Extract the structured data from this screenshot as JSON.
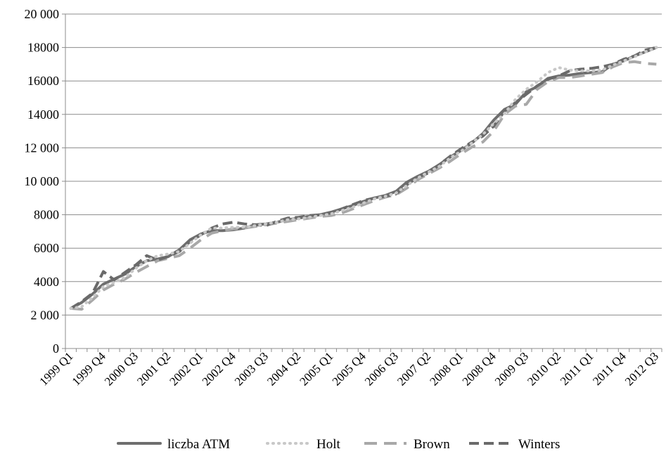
{
  "chart_data": {
    "type": "line",
    "title": "",
    "xlabel": "",
    "ylabel": "",
    "ylim": [
      0,
      20000
    ],
    "y_ticks": [
      0,
      2000,
      4000,
      6000,
      8000,
      10000,
      12000,
      14000,
      16000,
      18000,
      20000
    ],
    "y_tick_labels": [
      "0",
      "2 000",
      "4000",
      "6000",
      "8000",
      "10 000",
      "12 000",
      "14000",
      "16000",
      "18000",
      "20 000"
    ],
    "grid": "horizontal",
    "legend_position": "bottom",
    "categories": [
      "1999 Q1",
      "1999 Q2",
      "1999 Q3",
      "1999 Q4",
      "2000 Q1",
      "2000 Q2",
      "2000 Q3",
      "2000 Q4",
      "2001 Q1",
      "2001 Q2",
      "2001 Q3",
      "2001 Q4",
      "2002 Q1",
      "2002 Q2",
      "2002 Q3",
      "2002 Q4",
      "2003 Q1",
      "2003 Q2",
      "2003 Q3",
      "2003 Q4",
      "2004 Q1",
      "2004 Q2",
      "2004 Q3",
      "2004 Q4",
      "2005 Q1",
      "2005 Q2",
      "2005 Q3",
      "2005 Q4",
      "2006 Q1",
      "2006 Q2",
      "2006 Q3",
      "2006 Q4",
      "2007 Q1",
      "2007 Q2",
      "2007 Q3",
      "2007 Q4",
      "2008 Q1",
      "2008 Q2",
      "2008 Q3",
      "2008 Q4",
      "2009 Q1",
      "2009 Q2",
      "2009 Q3",
      "2009 Q4",
      "2010 Q1",
      "2010 Q2",
      "2010 Q3",
      "2010 Q4",
      "2011 Q1",
      "2011 Q2",
      "2011 Q3",
      "2011 Q4",
      "2012 Q1",
      "2012 Q2",
      "2012 Q3"
    ],
    "labeled_categories": [
      "1999 Q1",
      "1999 Q4",
      "2000 Q3",
      "2001 Q2",
      "2002 Q1",
      "2002 Q4",
      "2003 Q3",
      "2004 Q2",
      "2005 Q1",
      "2005 Q4",
      "2006 Q3",
      "2007 Q2",
      "2008 Q1",
      "2008 Q4",
      "2009 Q3",
      "2010 Q2",
      "2011 Q1",
      "2011 Q4",
      "2012 Q3"
    ],
    "series": [
      {
        "name": "liczba ATM",
        "style": "solid",
        "color": "#6e6e6e",
        "values": [
          2400,
          2750,
          3250,
          3850,
          4150,
          4450,
          4900,
          5250,
          5350,
          5500,
          5900,
          6500,
          6850,
          7050,
          7050,
          7100,
          7200,
          7400,
          7450,
          7550,
          7700,
          7800,
          7900,
          8000,
          8150,
          8350,
          8550,
          8800,
          9000,
          9150,
          9400,
          9950,
          10300,
          10600,
          11000,
          11450,
          11850,
          12300,
          12850,
          13650,
          14300,
          14600,
          15350,
          15650,
          16150,
          16300,
          16350,
          16450,
          16500,
          16550,
          17000,
          17200,
          17500,
          17750,
          18000
        ]
      },
      {
        "name": "Holt",
        "style": "dotted",
        "color": "#c8c8c8",
        "values": [
          2400,
          2500,
          3050,
          3700,
          3950,
          4250,
          4800,
          5250,
          5550,
          5650,
          5800,
          6300,
          6800,
          7200,
          7200,
          7250,
          7250,
          7350,
          7450,
          7550,
          7700,
          7750,
          7850,
          7950,
          8050,
          8250,
          8450,
          8700,
          8950,
          9100,
          9300,
          9750,
          10200,
          10550,
          10900,
          11400,
          11800,
          12300,
          12800,
          13450,
          14050,
          14900,
          15500,
          15950,
          16500,
          16800,
          16650,
          16600,
          16600,
          16650,
          16950,
          17200,
          17450,
          17750,
          18000
        ]
      },
      {
        "name": "Brown",
        "style": "dashed",
        "color": "#a8a8a8",
        "values": [
          2400,
          2350,
          2900,
          3500,
          3850,
          4150,
          4550,
          4900,
          5250,
          5400,
          5550,
          6000,
          6500,
          6900,
          7050,
          7150,
          7200,
          7300,
          7400,
          7500,
          7600,
          7700,
          7800,
          7900,
          7950,
          8100,
          8350,
          8600,
          8850,
          9050,
          9200,
          9600,
          10100,
          10450,
          10800,
          11200,
          11650,
          12050,
          12350,
          13000,
          14000,
          14500,
          14600,
          15500,
          15950,
          16200,
          16200,
          16300,
          16400,
          16500,
          16850,
          17100,
          17150,
          17050,
          17000
        ]
      },
      {
        "name": "Winters",
        "style": "dashed-dark",
        "color": "#6a6a6a",
        "values": [
          2400,
          2800,
          3300,
          4600,
          4100,
          4550,
          5000,
          5550,
          5300,
          5500,
          5800,
          6400,
          6800,
          7200,
          7450,
          7550,
          7450,
          7400,
          7350,
          7600,
          7800,
          7850,
          7950,
          8000,
          8100,
          8350,
          8600,
          8850,
          9000,
          9100,
          9250,
          9800,
          10250,
          10500,
          11000,
          11500,
          11950,
          12350,
          12700,
          13300,
          14200,
          14700,
          15200,
          15700,
          16100,
          16300,
          16600,
          16700,
          16750,
          16850,
          17000,
          17300,
          17500,
          17850,
          18000
        ]
      }
    ]
  }
}
